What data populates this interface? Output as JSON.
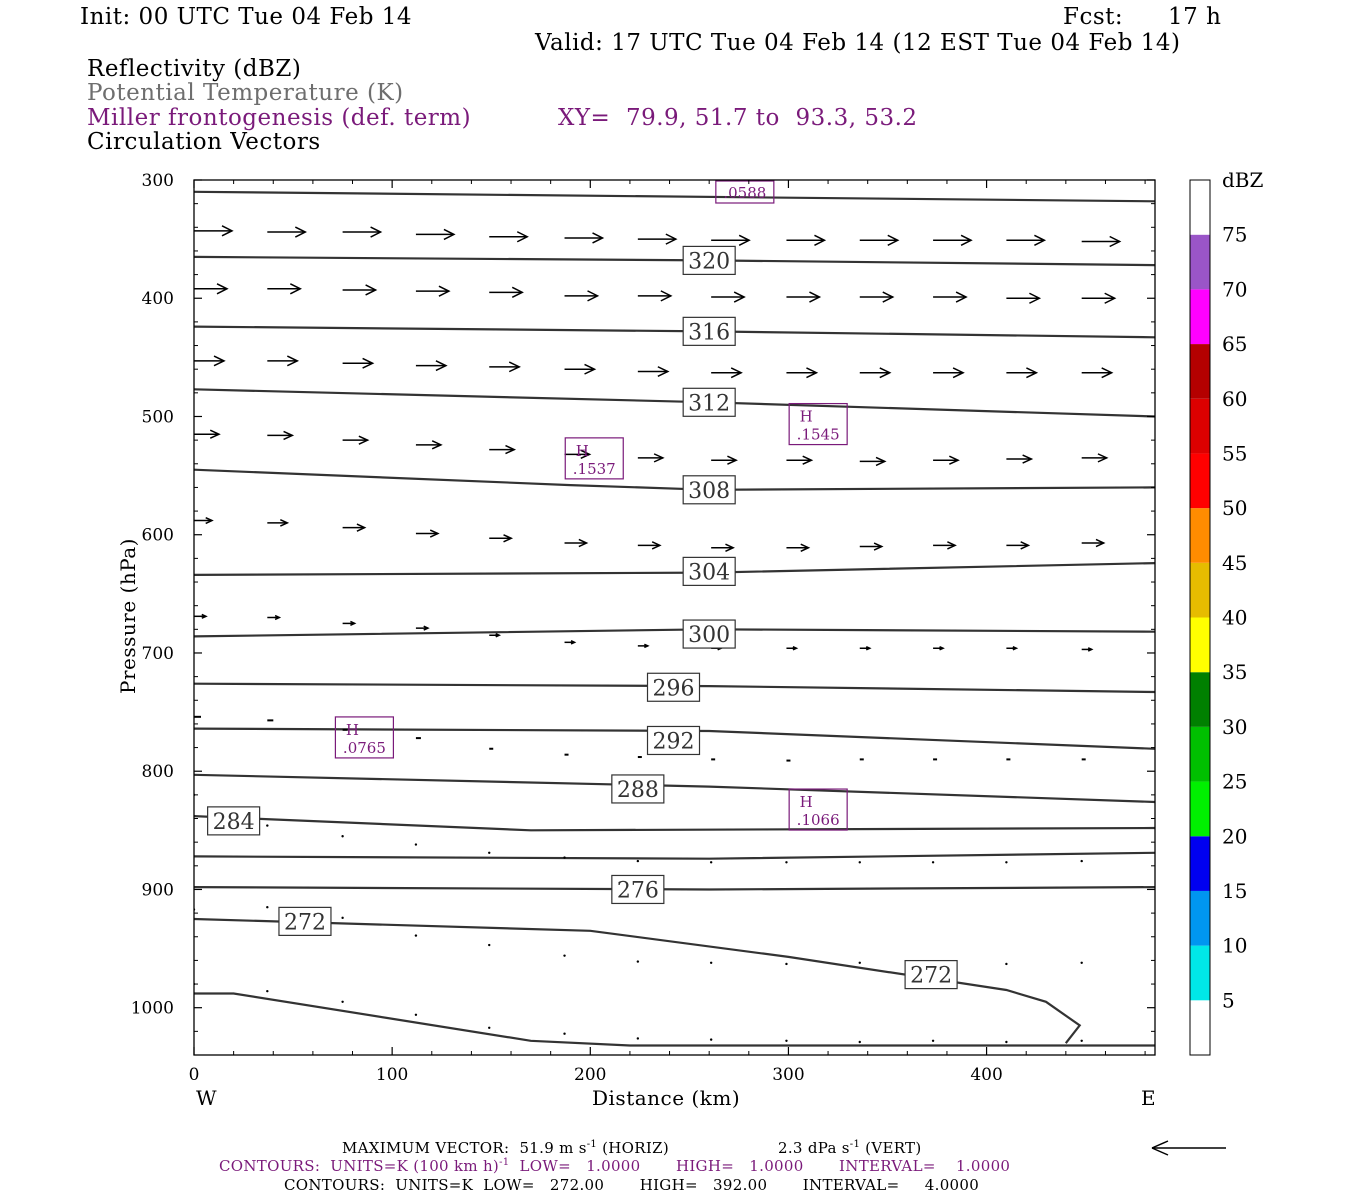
{
  "header": {
    "init": "Init: 00 UTC Tue 04 Feb 14",
    "fcst_label": "Fcst:",
    "fcst_value": "17 h",
    "valid": "Valid: 17 UTC Tue 04 Feb 14 (12 EST Tue 04 Feb 14)"
  },
  "fields": {
    "reflectivity": "Reflectivity (dBZ)",
    "theta": "Potential Temperature (K)",
    "miller": "Miller frontogenesis (def. term)",
    "xy": "XY=  79.9, 51.7 to  93.3, 53.2",
    "vectors": "Circulation Vectors"
  },
  "footer": {
    "max_vector": "MAXIMUM VECTOR:  51.9 m s",
    "max_vector_exp": "-1",
    "max_vector_horiz": " (HORIZ)",
    "max_vector_vert": "2.3 dPa s",
    "max_vector_vert_exp": "-1",
    "max_vector_vert_tail": " (VERT)",
    "contours1_a": "CONTOURS:  UNITS=K (100 km h)",
    "contours1_exp": "-1",
    "contours1_b": "  LOW=   1.0000       HIGH=   1.0000       INTERVAL=    1.0000",
    "contours2": "CONTOURS:  UNITS=K  LOW=   272.00       HIGH=   392.00       INTERVAL=     4.0000"
  },
  "colors": {
    "text": "#000000",
    "purple": "#7a1a7a",
    "gray": "#6e6e6e",
    "contour": "#333333"
  },
  "chart_data": {
    "type": "line",
    "title": "",
    "xlabel": "Distance (km)",
    "ylabel": "Pressure (hPa)",
    "xlim": [
      0,
      485
    ],
    "ylim": [
      1040,
      300
    ],
    "y_reversed": true,
    "xticks": [
      0,
      100,
      200,
      300,
      400
    ],
    "yticks": [
      300,
      400,
      500,
      600,
      700,
      800,
      900,
      1000
    ],
    "x_end_labels": {
      "left": "W",
      "right": "E"
    },
    "theta_contours": [
      {
        "level": "",
        "points": [
          [
            0,
            310
          ],
          [
            485,
            318
          ]
        ]
      },
      {
        "level": "320",
        "points": [
          [
            0,
            365
          ],
          [
            260,
            368
          ],
          [
            485,
            372
          ]
        ]
      },
      {
        "level": "316",
        "points": [
          [
            0,
            424
          ],
          [
            260,
            428
          ],
          [
            485,
            433
          ]
        ]
      },
      {
        "level": "312",
        "points": [
          [
            0,
            477
          ],
          [
            260,
            488
          ],
          [
            485,
            500
          ]
        ]
      },
      {
        "level": "308",
        "points": [
          [
            0,
            545
          ],
          [
            190,
            558
          ],
          [
            260,
            562
          ],
          [
            485,
            560
          ]
        ]
      },
      {
        "level": "304",
        "points": [
          [
            0,
            634
          ],
          [
            260,
            632
          ],
          [
            485,
            624
          ]
        ]
      },
      {
        "level": "300",
        "points": [
          [
            0,
            686
          ],
          [
            260,
            680
          ],
          [
            485,
            682
          ]
        ]
      },
      {
        "level": "296",
        "points": [
          [
            0,
            726
          ],
          [
            260,
            728
          ],
          [
            485,
            733
          ]
        ]
      },
      {
        "level": "292",
        "points": [
          [
            0,
            764
          ],
          [
            260,
            766
          ],
          [
            485,
            781
          ]
        ]
      },
      {
        "level": "288",
        "points": [
          [
            0,
            803
          ],
          [
            260,
            813
          ],
          [
            485,
            826
          ]
        ]
      },
      {
        "level": "284",
        "points": [
          [
            0,
            838
          ],
          [
            170,
            850
          ],
          [
            485,
            848
          ]
        ]
      },
      {
        "level": "",
        "points": [
          [
            0,
            872
          ],
          [
            260,
            874
          ],
          [
            485,
            869
          ]
        ]
      },
      {
        "level": "276",
        "points": [
          [
            0,
            898
          ],
          [
            260,
            900
          ],
          [
            485,
            898
          ]
        ]
      },
      {
        "level": "272",
        "points": [
          [
            0,
            925
          ],
          [
            200,
            935
          ],
          [
            300,
            957
          ],
          [
            410,
            985
          ],
          [
            430,
            995
          ],
          [
            447,
            1015
          ],
          [
            440,
            1030
          ]
        ]
      },
      {
        "level": "",
        "points": [
          [
            0,
            988
          ],
          [
            20,
            988
          ],
          [
            170,
            1028
          ],
          [
            220,
            1032
          ],
          [
            485,
            1032
          ]
        ]
      }
    ],
    "theta_labels": [
      {
        "text": "320",
        "x": 260,
        "p": 368
      },
      {
        "text": "316",
        "x": 260,
        "p": 428
      },
      {
        "text": "312",
        "x": 260,
        "p": 488
      },
      {
        "text": "308",
        "x": 260,
        "p": 562
      },
      {
        "text": "304",
        "x": 260,
        "p": 631
      },
      {
        "text": "300",
        "x": 260,
        "p": 684
      },
      {
        "text": "296",
        "x": 242,
        "p": 729
      },
      {
        "text": "292",
        "x": 242,
        "p": 774
      },
      {
        "text": "288",
        "x": 224,
        "p": 815
      },
      {
        "text": "284",
        "x": 20,
        "p": 842
      },
      {
        "text": "276",
        "x": 224,
        "p": 900
      },
      {
        "text": "272",
        "x": 56,
        "p": 927
      },
      {
        "text": "272",
        "x": 372,
        "p": 972
      }
    ],
    "extrema": [
      {
        "symbol": "",
        "value": ".0588",
        "x": 278,
        "p": 310
      },
      {
        "symbol": "H",
        "value": ".1545",
        "x": 315,
        "p": 506
      },
      {
        "symbol": "H",
        "value": ".1537",
        "x": 202,
        "p": 535
      },
      {
        "symbol": "H",
        "value": ".0765",
        "x": 86,
        "p": 771
      },
      {
        "symbol": "H",
        "value": ".1066",
        "x": 315,
        "p": 832
      }
    ],
    "vectors": {
      "x": [
        0,
        37,
        75,
        112,
        149,
        187,
        224,
        261,
        299,
        336,
        373,
        410,
        448
      ],
      "rows": [
        {
          "p": [
            343,
            344,
            344,
            346,
            348,
            349,
            350,
            351,
            351,
            351,
            351,
            351,
            352
          ],
          "len": [
            38,
            38,
            38,
            38,
            38,
            38,
            38,
            38,
            38,
            38,
            38,
            38,
            38
          ]
        },
        {
          "p": [
            392,
            392,
            393,
            394,
            395,
            398,
            398,
            399,
            399,
            399,
            399,
            400,
            400
          ],
          "len": [
            33,
            33,
            33,
            33,
            33,
            33,
            33,
            33,
            33,
            33,
            33,
            33,
            33
          ]
        },
        {
          "p": [
            453,
            453,
            455,
            457,
            458,
            460,
            462,
            463,
            463,
            463,
            463,
            463,
            463
          ],
          "len": [
            30,
            30,
            30,
            30,
            30,
            30,
            30,
            30,
            30,
            30,
            30,
            30,
            30
          ]
        },
        {
          "p": [
            515,
            516,
            520,
            524,
            528,
            532,
            535,
            537,
            537,
            538,
            537,
            536,
            535
          ],
          "len": [
            25,
            25,
            25,
            25,
            25,
            25,
            25,
            25,
            25,
            25,
            25,
            25,
            25
          ]
        },
        {
          "p": [
            588,
            590,
            594,
            599,
            603,
            607,
            609,
            611,
            611,
            610,
            609,
            609,
            607
          ],
          "len": [
            18,
            20,
            22,
            22,
            22,
            22,
            22,
            22,
            22,
            22,
            22,
            22,
            22
          ]
        },
        {
          "p": [
            669,
            670,
            675,
            679,
            685,
            691,
            694,
            696,
            696,
            696,
            696,
            696,
            697
          ],
          "len": [
            12,
            12,
            12,
            12,
            10,
            10,
            10,
            10,
            10,
            10,
            10,
            10,
            10
          ]
        },
        {
          "p": [
            754,
            757,
            765,
            772,
            781,
            786,
            788,
            790,
            791,
            790,
            790,
            790,
            790
          ],
          "len": [
            5,
            4,
            3,
            3,
            2,
            2,
            2,
            2,
            2,
            2,
            2,
            2,
            2
          ]
        },
        {
          "p": [
            820,
            846,
            855,
            862,
            869,
            873,
            876,
            877,
            877,
            877,
            877,
            877,
            876
          ],
          "len": [
            0,
            0,
            0,
            0,
            0,
            0,
            0,
            0,
            0,
            0,
            0,
            0,
            0
          ]
        },
        {
          "p": [
            917,
            915,
            924,
            939,
            947,
            956,
            961,
            962,
            963,
            962,
            962,
            963,
            962
          ],
          "len": [
            0,
            0,
            0,
            0,
            0,
            0,
            0,
            0,
            0,
            0,
            0,
            0,
            0
          ]
        },
        {
          "p": [
            980,
            986,
            995,
            1006,
            1017,
            1022,
            1026,
            1027,
            1028,
            1029,
            1028,
            1029,
            1028
          ],
          "len": [
            0,
            0,
            0,
            0,
            0,
            0,
            0,
            0,
            0,
            0,
            0,
            0,
            0
          ]
        }
      ]
    },
    "colorbar": {
      "title": "dBZ",
      "labels": [
        "5",
        "10",
        "15",
        "20",
        "25",
        "30",
        "35",
        "40",
        "45",
        "50",
        "55",
        "60",
        "65",
        "70",
        "75"
      ],
      "colors": [
        "#ffffff",
        "#00e8e8",
        "#0096f0",
        "#0000f0",
        "#00f000",
        "#00c000",
        "#008000",
        "#ffff00",
        "#e6bc00",
        "#ff8c00",
        "#ff0000",
        "#dd0000",
        "#b40000",
        "#ff00ff",
        "#9a55c8",
        "#ffffff"
      ]
    }
  }
}
